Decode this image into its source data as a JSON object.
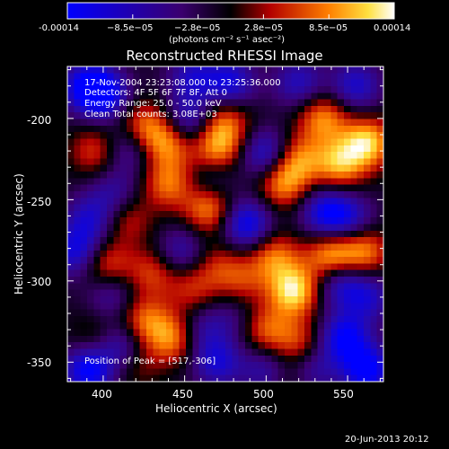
{
  "chart_data": {
    "type": "heatmap",
    "title": "Reconstructed RHESSI Image",
    "xlabel": "Heliocentric X (arcsec)",
    "ylabel": "Heliocentric Y (arcsec)",
    "xlim": [
      378,
      572
    ],
    "ylim": [
      -362,
      -168
    ],
    "x_ticks": [
      400,
      450,
      500,
      550
    ],
    "y_ticks": [
      -200,
      -250,
      -300,
      -350
    ],
    "colorbar": {
      "range": [
        -0.00014,
        0.00014
      ],
      "tick_labels": [
        "-0.00014",
        "−8.5e−05",
        "−2.8e−05",
        "2.8e−05",
        "8.5e−05",
        "0.00014"
      ],
      "unit_label": "(photons cm⁻² s⁻¹ asec⁻²)"
    },
    "annotations": [
      "17-Nov-2004 23:23:08.000 to 23:25:36.000",
      "Detectors: 4F 5F 6F 7F 8F, Att 0",
      "Energy Range: 25.0 - 50.0 keV",
      "Clean     Total counts: 3.08E+03"
    ],
    "peak_label": "Position of Peak = [517,-306]",
    "peak": [
      517,
      -306
    ],
    "blobs": [
      {
        "x": 391,
        "y": -355,
        "v": -0.00013
      },
      {
        "x": 412,
        "y": -340,
        "v": -9e-05
      },
      {
        "x": 405,
        "y": -308,
        "v": -6e-05
      },
      {
        "x": 383,
        "y": -282,
        "v": -0.0001
      },
      {
        "x": 392,
        "y": -262,
        "v": -8e-05
      },
      {
        "x": 407,
        "y": -246,
        "v": -6e-05
      },
      {
        "x": 416,
        "y": -218,
        "v": -7e-05
      },
      {
        "x": 400,
        "y": -185,
        "v": -0.00012
      },
      {
        "x": 389,
        "y": -180,
        "v": -0.0001
      },
      {
        "x": 452,
        "y": -202,
        "v": -9e-05
      },
      {
        "x": 455,
        "y": -175,
        "v": -8e-05
      },
      {
        "x": 478,
        "y": -178,
        "v": -0.0001
      },
      {
        "x": 520,
        "y": -178,
        "v": -8e-05
      },
      {
        "x": 555,
        "y": -180,
        "v": -9e-05
      },
      {
        "x": 500,
        "y": -222,
        "v": -0.0001
      },
      {
        "x": 488,
        "y": -265,
        "v": -0.00012
      },
      {
        "x": 537,
        "y": -258,
        "v": -0.00011
      },
      {
        "x": 552,
        "y": -262,
        "v": -7e-05
      },
      {
        "x": 545,
        "y": -300,
        "v": -9e-05
      },
      {
        "x": 562,
        "y": -310,
        "v": -8e-05
      },
      {
        "x": 448,
        "y": -282,
        "v": -7e-05
      },
      {
        "x": 460,
        "y": -330,
        "v": -6e-05
      },
      {
        "x": 470,
        "y": -350,
        "v": -9e-05
      },
      {
        "x": 500,
        "y": -355,
        "v": -7e-05
      },
      {
        "x": 528,
        "y": -355,
        "v": -7e-05
      },
      {
        "x": 548,
        "y": -335,
        "v": -0.00012
      },
      {
        "x": 562,
        "y": -355,
        "v": -0.00013
      },
      {
        "x": 480,
        "y": -322,
        "v": -4e-05
      },
      {
        "x": 466,
        "y": -240,
        "v": -5e-05
      },
      {
        "x": 425,
        "y": -205,
        "v": 9e-05
      },
      {
        "x": 440,
        "y": -215,
        "v": 0.0001
      },
      {
        "x": 395,
        "y": -220,
        "v": 7e-05
      },
      {
        "x": 470,
        "y": -218,
        "v": 0.0001
      },
      {
        "x": 475,
        "y": -202,
        "v": 8e-05
      },
      {
        "x": 465,
        "y": -255,
        "v": 0.00011
      },
      {
        "x": 440,
        "y": -240,
        "v": 9e-05
      },
      {
        "x": 415,
        "y": -262,
        "v": 6e-05
      },
      {
        "x": 402,
        "y": -290,
        "v": 8e-05
      },
      {
        "x": 430,
        "y": -295,
        "v": 7e-05
      },
      {
        "x": 455,
        "y": -305,
        "v": 6e-05
      },
      {
        "x": 485,
        "y": -300,
        "v": 6e-05
      },
      {
        "x": 510,
        "y": -240,
        "v": 0.0001
      },
      {
        "x": 520,
        "y": -225,
        "v": 9e-05
      },
      {
        "x": 545,
        "y": -228,
        "v": 0.00011
      },
      {
        "x": 562,
        "y": -215,
        "v": 0.00013
      },
      {
        "x": 535,
        "y": -200,
        "v": 0.0001
      },
      {
        "x": 505,
        "y": -285,
        "v": 9e-05
      },
      {
        "x": 517,
        "y": -306,
        "v": 0.00014
      },
      {
        "x": 540,
        "y": -285,
        "v": 0.00012
      },
      {
        "x": 560,
        "y": -282,
        "v": 0.0001
      },
      {
        "x": 425,
        "y": -325,
        "v": 9e-05
      },
      {
        "x": 443,
        "y": -335,
        "v": 0.0001
      },
      {
        "x": 420,
        "y": -350,
        "v": 5e-05
      },
      {
        "x": 500,
        "y": -330,
        "v": 8e-05
      },
      {
        "x": 520,
        "y": -338,
        "v": 7e-05
      },
      {
        "x": 515,
        "y": -360,
        "v": 4e-05
      },
      {
        "x": 470,
        "y": -290,
        "v": 5e-05
      },
      {
        "x": 395,
        "y": -335,
        "v": 4e-05
      }
    ]
  },
  "footer": {
    "timestamp": "20-Jun-2013 20:12"
  }
}
